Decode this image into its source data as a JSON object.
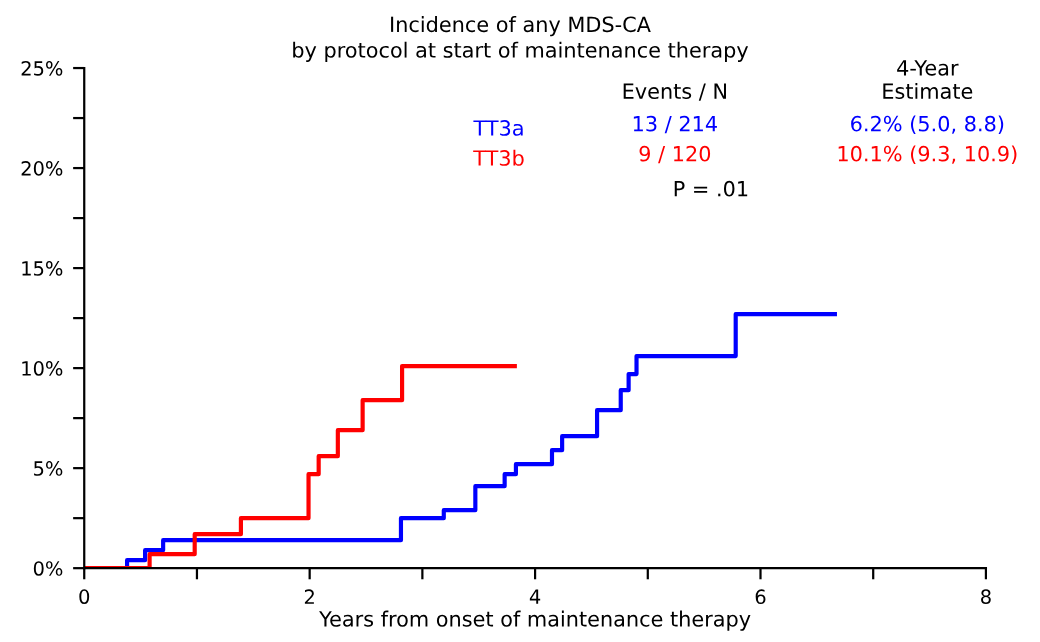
{
  "chart_data": {
    "type": "step",
    "title": "Incidence of any MDS-CA",
    "subtitle": "by protocol at start of maintenance therapy",
    "xlabel": "Years from onset of maintenance therapy",
    "series": [
      {
        "name": "TT3a",
        "color": "#0000ff",
        "x": [
          0,
          0.38,
          0.54,
          0.7,
          2.56,
          2.81,
          3.19,
          3.47,
          3.73,
          3.83,
          4.15,
          4.24,
          4.55,
          4.76,
          4.83,
          4.9,
          5.78,
          6.66
        ],
        "values": [
          0,
          0.4,
          0.9,
          1.4,
          1.4,
          2.5,
          2.9,
          4.1,
          4.7,
          5.2,
          5.9,
          6.6,
          7.9,
          8.9,
          9.7,
          10.6,
          12.7,
          12.7
        ]
      },
      {
        "name": "TT3b",
        "color": "#ff0000",
        "x": [
          0,
          0.58,
          0.98,
          1.39,
          1.99,
          2.08,
          2.25,
          2.47,
          2.82,
          3.82
        ],
        "values": [
          0,
          0.7,
          1.7,
          2.5,
          4.7,
          5.6,
          6.9,
          8.4,
          10.1,
          10.1
        ]
      }
    ],
    "xlim": [
      0,
      8
    ],
    "xticks": [
      0,
      {
        "value": 1,
        "label": null
      },
      2,
      {
        "value": 3,
        "label": null
      },
      4,
      {
        "value": 5,
        "label": null
      },
      6,
      {
        "value": 7,
        "label": null
      },
      8
    ],
    "ylim": [
      0,
      25
    ],
    "yticks": [
      {
        "value": 0,
        "label": "0%"
      },
      {
        "value": 2.5,
        "label": null
      },
      {
        "value": 5,
        "label": "5%"
      },
      {
        "value": 7.5,
        "label": null
      },
      {
        "value": 10,
        "label": "10%"
      },
      {
        "value": 12.5,
        "label": null
      },
      {
        "value": 15,
        "label": "15%"
      },
      {
        "value": 17.5,
        "label": null
      },
      {
        "value": 20,
        "label": "20%"
      },
      {
        "value": 22.5,
        "label": null
      },
      {
        "value": 25,
        "label": "25%"
      }
    ],
    "grid": false,
    "legend": "top right",
    "annotations": [
      "Events / N",
      "4-Year\nEstimate",
      "13 / 214",
      "9 / 120",
      "6.2% (5.0, 8.8)",
      "10.1% (9.3, 10.9)",
      "P = .01"
    ]
  }
}
